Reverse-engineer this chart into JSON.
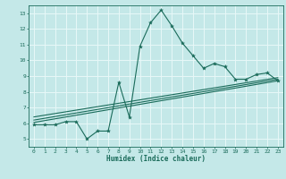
{
  "title": "",
  "xlabel": "Humidex (Indice chaleur)",
  "background_color": "#c4e8e8",
  "grid_color": "#e8f8f8",
  "line_color": "#1a6b5a",
  "xlim": [
    -0.5,
    23.5
  ],
  "ylim": [
    4.5,
    13.5
  ],
  "xticks": [
    0,
    1,
    2,
    3,
    4,
    5,
    6,
    7,
    8,
    9,
    10,
    11,
    12,
    13,
    14,
    15,
    16,
    17,
    18,
    19,
    20,
    21,
    22,
    23
  ],
  "yticks": [
    5,
    6,
    7,
    8,
    9,
    10,
    11,
    12,
    13
  ],
  "scatter_x": [
    0,
    1,
    2,
    3,
    4,
    5,
    6,
    7,
    8,
    9,
    10,
    11,
    12,
    13,
    14,
    15,
    16,
    17,
    18,
    19,
    20,
    21,
    22,
    23
  ],
  "scatter_y": [
    5.9,
    5.9,
    5.9,
    6.1,
    6.1,
    5.0,
    5.5,
    5.5,
    8.6,
    6.4,
    10.9,
    12.4,
    13.2,
    12.2,
    11.1,
    10.3,
    9.5,
    9.8,
    9.6,
    8.8,
    8.8,
    9.1,
    9.2,
    8.7
  ],
  "line1_x": [
    0,
    23
  ],
  "line1_y": [
    6.05,
    8.7
  ],
  "line2_x": [
    0,
    23
  ],
  "line2_y": [
    6.2,
    8.8
  ],
  "line3_x": [
    0,
    23
  ],
  "line3_y": [
    6.4,
    8.9
  ]
}
